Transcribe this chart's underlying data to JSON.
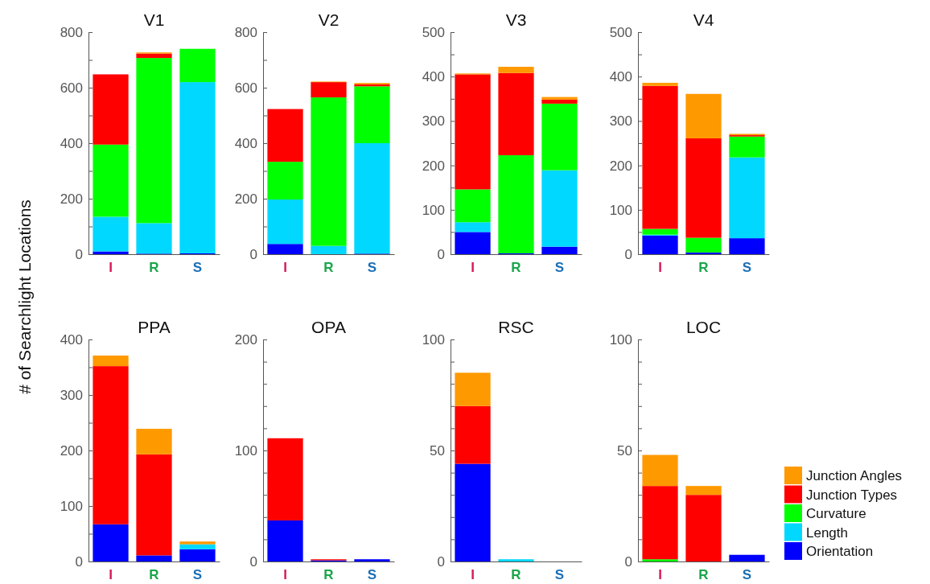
{
  "chart_data": [
    {
      "type": "bar",
      "title": "V1",
      "ylabel": "# of Searchlight Locations",
      "categories": [
        "I",
        "R",
        "S"
      ],
      "stacked": true,
      "ylim": [
        0,
        800
      ],
      "yticks": [
        0,
        {
          "value": 100,
          "label": null
        },
        200,
        {
          "value": 300,
          "label": null
        },
        400,
        {
          "value": 500,
          "label": null
        },
        600,
        {
          "value": 700,
          "label": null
        },
        800
      ],
      "series": [
        {
          "color": "#0000ff",
          "values": [
            10,
            2,
            3
          ]
        },
        {
          "color": "#00d8ff",
          "values": [
            125,
            110,
            617
          ]
        },
        {
          "color": "#00ff00",
          "values": [
            260,
            595,
            120
          ]
        },
        {
          "color": "#ff0000",
          "values": [
            253,
            16,
            0
          ]
        },
        {
          "color": "#ff9900",
          "values": [
            0,
            4,
            0
          ]
        }
      ]
    },
    {
      "type": "bar",
      "title": "V2",
      "categories": [
        "I",
        "R",
        "S"
      ],
      "stacked": true,
      "ylim": [
        0,
        800
      ],
      "yticks": [
        0,
        {
          "value": 100,
          "label": null
        },
        200,
        {
          "value": 300,
          "label": null
        },
        400,
        {
          "value": 500,
          "label": null
        },
        600,
        {
          "value": 700,
          "label": null
        },
        800
      ],
      "series": [
        {
          "color": "#0000ff",
          "values": [
            37,
            0,
            2
          ]
        },
        {
          "color": "#00d8ff",
          "values": [
            160,
            30,
            398
          ]
        },
        {
          "color": "#00ff00",
          "values": [
            136,
            535,
            205
          ]
        },
        {
          "color": "#ff0000",
          "values": [
            190,
            55,
            7
          ]
        },
        {
          "color": "#ff9900",
          "values": [
            0,
            2,
            5
          ]
        }
      ]
    },
    {
      "type": "bar",
      "title": "V3",
      "categories": [
        "I",
        "R",
        "S"
      ],
      "stacked": true,
      "ylim": [
        0,
        500
      ],
      "yticks": [
        0,
        {
          "value": 50,
          "label": null
        },
        100,
        {
          "value": 150,
          "label": null
        },
        200,
        {
          "value": 250,
          "label": null
        },
        300,
        {
          "value": 350,
          "label": null
        },
        400,
        {
          "value": 450,
          "label": null
        },
        500
      ],
      "series": [
        {
          "color": "#0000ff",
          "values": [
            50,
            2,
            17
          ]
        },
        {
          "color": "#00d8ff",
          "values": [
            22,
            0,
            172
          ]
        },
        {
          "color": "#00ff00",
          "values": [
            74,
            221,
            150
          ]
        },
        {
          "color": "#ff0000",
          "values": [
            259,
            185,
            9
          ]
        },
        {
          "color": "#ff9900",
          "values": [
            2,
            14,
            6
          ]
        }
      ]
    },
    {
      "type": "bar",
      "title": "V4",
      "categories": [
        "I",
        "R",
        "S"
      ],
      "stacked": true,
      "ylim": [
        0,
        500
      ],
      "yticks": [
        0,
        {
          "value": 50,
          "label": null
        },
        100,
        {
          "value": 150,
          "label": null
        },
        200,
        {
          "value": 250,
          "label": null
        },
        300,
        {
          "value": 350,
          "label": null
        },
        400,
        {
          "value": 450,
          "label": null
        },
        500
      ],
      "series": [
        {
          "color": "#0000ff",
          "values": [
            42,
            4,
            36
          ]
        },
        {
          "color": "#00d8ff",
          "values": [
            2,
            0,
            182
          ]
        },
        {
          "color": "#00ff00",
          "values": [
            13,
            33,
            47
          ]
        },
        {
          "color": "#ff0000",
          "values": [
            322,
            224,
            3
          ]
        },
        {
          "color": "#ff9900",
          "values": [
            7,
            100,
            3
          ]
        }
      ]
    },
    {
      "type": "bar",
      "title": "PPA",
      "categories": [
        "I",
        "R",
        "S"
      ],
      "stacked": true,
      "ylim": [
        0,
        400
      ],
      "yticks": [
        0,
        {
          "value": 50,
          "label": null
        },
        100,
        {
          "value": 150,
          "label": null
        },
        200,
        {
          "value": 250,
          "label": null
        },
        300,
        {
          "value": 350,
          "label": null
        },
        400
      ],
      "series": [
        {
          "color": "#0000ff",
          "values": [
            67,
            11,
            22
          ]
        },
        {
          "color": "#00d8ff",
          "values": [
            0,
            0,
            9
          ]
        },
        {
          "color": "#00ff00",
          "values": [
            0,
            0,
            0
          ]
        },
        {
          "color": "#ff0000",
          "values": [
            285,
            182,
            0
          ]
        },
        {
          "color": "#ff9900",
          "values": [
            19,
            46,
            5
          ]
        }
      ]
    },
    {
      "type": "bar",
      "title": "OPA",
      "categories": [
        "I",
        "R",
        "S"
      ],
      "stacked": true,
      "ylim": [
        0,
        200
      ],
      "yticks": [
        0,
        {
          "value": 20,
          "label": null
        },
        {
          "value": 40,
          "label": null
        },
        {
          "value": 60,
          "label": null
        },
        {
          "value": 80,
          "label": null
        },
        100,
        {
          "value": 120,
          "label": null
        },
        {
          "value": 140,
          "label": null
        },
        {
          "value": 160,
          "label": null
        },
        {
          "value": 180,
          "label": null
        },
        200
      ],
      "series": [
        {
          "color": "#0000ff",
          "values": [
            37,
            1,
            2
          ]
        },
        {
          "color": "#00d8ff",
          "values": [
            0,
            0,
            0
          ]
        },
        {
          "color": "#00ff00",
          "values": [
            0,
            0,
            0
          ]
        },
        {
          "color": "#ff0000",
          "values": [
            74,
            1,
            0
          ]
        },
        {
          "color": "#ff9900",
          "values": [
            0,
            0,
            0
          ]
        }
      ]
    },
    {
      "type": "bar",
      "title": "RSC",
      "categories": [
        "I",
        "R",
        "S"
      ],
      "stacked": true,
      "ylim": [
        0,
        100
      ],
      "yticks": [
        0,
        {
          "value": 10,
          "label": null
        },
        {
          "value": 20,
          "label": null
        },
        {
          "value": 30,
          "label": null
        },
        {
          "value": 40,
          "label": null
        },
        50,
        {
          "value": 60,
          "label": null
        },
        {
          "value": 70,
          "label": null
        },
        {
          "value": 80,
          "label": null
        },
        {
          "value": 90,
          "label": null
        },
        100
      ],
      "series": [
        {
          "color": "#0000ff",
          "values": [
            44,
            0,
            0
          ]
        },
        {
          "color": "#00d8ff",
          "values": [
            0,
            1,
            0
          ]
        },
        {
          "color": "#00ff00",
          "values": [
            0,
            0,
            0
          ]
        },
        {
          "color": "#ff0000",
          "values": [
            26,
            0,
            0
          ]
        },
        {
          "color": "#ff9900",
          "values": [
            15,
            0,
            0
          ]
        }
      ]
    },
    {
      "type": "bar",
      "title": "LOC",
      "categories": [
        "I",
        "R",
        "S"
      ],
      "stacked": true,
      "legend": "bottom right",
      "ylim": [
        0,
        100
      ],
      "yticks": [
        0,
        {
          "value": 10,
          "label": null
        },
        {
          "value": 20,
          "label": null
        },
        {
          "value": 30,
          "label": null
        },
        {
          "value": 40,
          "label": null
        },
        50,
        {
          "value": 60,
          "label": null
        },
        {
          "value": 70,
          "label": null
        },
        {
          "value": 80,
          "label": null
        },
        {
          "value": 90,
          "label": null
        },
        100
      ],
      "series": [
        {
          "name": "Orientation",
          "color": "#0000ff",
          "values": [
            0,
            0,
            3
          ]
        },
        {
          "name": "Length",
          "color": "#00d8ff",
          "values": [
            0,
            0,
            0
          ]
        },
        {
          "name": "Curvature",
          "color": "#00ff00",
          "values": [
            1,
            0,
            0
          ]
        },
        {
          "name": "Junction Types",
          "color": "#ff0000",
          "values": [
            33,
            30,
            0
          ]
        },
        {
          "name": "Junction Angles",
          "color": "#ff9900",
          "values": [
            14,
            4,
            0
          ]
        }
      ]
    }
  ]
}
